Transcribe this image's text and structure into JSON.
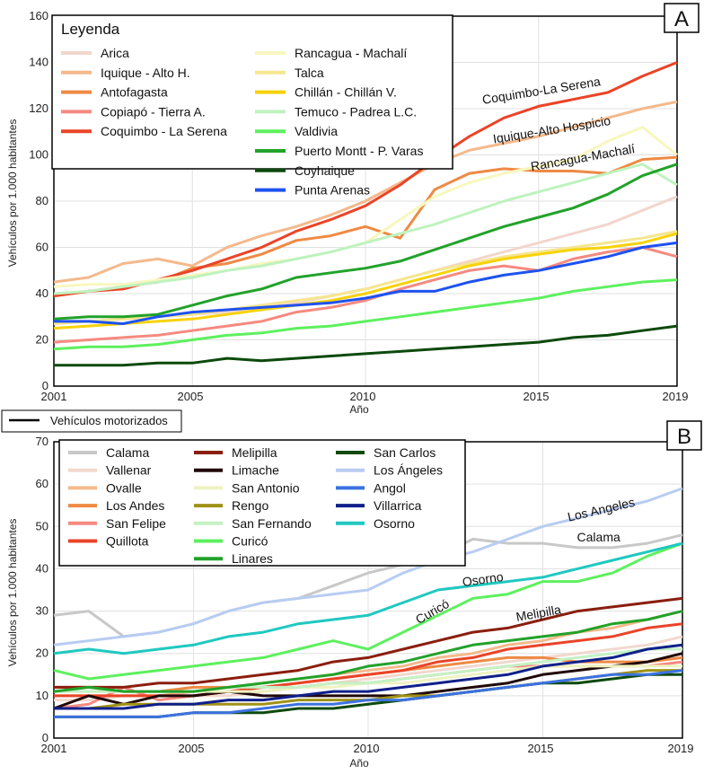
{
  "divider_legend": {
    "label": "Vehículos motorizados",
    "color": "#000000"
  },
  "chart_data": [
    {
      "type": "line",
      "panel": "A",
      "legend_title": "Leyenda",
      "xlabel": "Año",
      "ylabel": "Vehículos por 1.000 habitantes",
      "xlim": [
        2001,
        2019
      ],
      "ylim": [
        0,
        160
      ],
      "xticks": [
        2001,
        2005,
        2010,
        2015,
        2019
      ],
      "yticks": [
        0,
        20,
        40,
        60,
        80,
        100,
        120,
        140,
        160
      ],
      "grid": true,
      "legend_position": "top-left",
      "x": [
        2001,
        2002,
        2003,
        2004,
        2005,
        2006,
        2007,
        2008,
        2009,
        2010,
        2011,
        2012,
        2013,
        2014,
        2015,
        2016,
        2017,
        2018,
        2019
      ],
      "series": [
        {
          "name": "Arica",
          "color": "#f2d6cc",
          "values": [
            27,
            28,
            29,
            30,
            31,
            32,
            34,
            36,
            39,
            42,
            46,
            50,
            54,
            58,
            62,
            66,
            70,
            76,
            82
          ]
        },
        {
          "name": "Iquique - Alto H.",
          "color": "#f4b98c",
          "values": [
            45,
            47,
            53,
            55,
            52,
            60,
            65,
            69,
            74,
            80,
            88,
            96,
            102,
            105,
            108,
            112,
            116,
            120,
            123
          ]
        },
        {
          "name": "Antofagasta",
          "color": "#ee8a44",
          "values": [
            39,
            41,
            43,
            45,
            51,
            53,
            57,
            63,
            65,
            69,
            64,
            85,
            92,
            94,
            93,
            93,
            92,
            98,
            99
          ]
        },
        {
          "name": "Copiapó - Tierra A.",
          "color": "#f58a80",
          "values": [
            19,
            20,
            21,
            22,
            24,
            26,
            28,
            32,
            34,
            37,
            42,
            46,
            50,
            52,
            50,
            55,
            58,
            60,
            56
          ]
        },
        {
          "name": "Coquimbo - La Serena",
          "color": "#ea4428",
          "values": [
            39,
            41,
            42,
            46,
            50,
            55,
            60,
            67,
            72,
            78,
            87,
            98,
            108,
            116,
            121,
            124,
            127,
            134,
            140
          ]
        },
        {
          "name": "Rancagua - Machalí",
          "color": "#f7f7be",
          "values": [
            43,
            44,
            44,
            46,
            48,
            50,
            53,
            55,
            58,
            62,
            72,
            82,
            88,
            92,
            95,
            98,
            106,
            112,
            100
          ]
        },
        {
          "name": "Talca",
          "color": "#f5e690",
          "values": [
            27,
            28,
            29,
            30,
            31,
            33,
            35,
            37,
            39,
            42,
            46,
            50,
            53,
            56,
            58,
            60,
            62,
            64,
            67
          ]
        },
        {
          "name": "Chillán - Chillán V.",
          "color": "#f8d20a",
          "values": [
            25,
            26,
            27,
            28,
            29,
            31,
            33,
            35,
            37,
            40,
            44,
            48,
            52,
            55,
            57,
            59,
            60,
            62,
            66
          ]
        },
        {
          "name": "Temuco - Padrea L.C.",
          "color": "#bff2bf",
          "values": [
            40,
            41,
            43,
            45,
            47,
            50,
            52,
            55,
            58,
            62,
            66,
            70,
            75,
            80,
            84,
            88,
            92,
            96,
            87
          ]
        },
        {
          "name": "Valdivia",
          "color": "#5ef05e",
          "values": [
            16,
            17,
            17,
            18,
            20,
            22,
            23,
            25,
            26,
            28,
            30,
            32,
            34,
            36,
            38,
            41,
            43,
            45,
            46
          ]
        },
        {
          "name": "Puerto Montt - P. Varas",
          "color": "#22a22a",
          "values": [
            29,
            30,
            30,
            31,
            35,
            39,
            42,
            47,
            49,
            51,
            54,
            59,
            64,
            69,
            73,
            77,
            83,
            91,
            96
          ]
        },
        {
          "name": "Coyhaique",
          "color": "#0c4a0c",
          "values": [
            9,
            9,
            9,
            10,
            10,
            12,
            11,
            12,
            13,
            14,
            15,
            16,
            17,
            18,
            19,
            21,
            22,
            24,
            26
          ]
        },
        {
          "name": "Punta Arenas",
          "color": "#1e52f0",
          "values": [
            28,
            28,
            27,
            30,
            32,
            33,
            34,
            35,
            36,
            38,
            41,
            41,
            45,
            48,
            50,
            53,
            56,
            60,
            62
          ]
        }
      ],
      "annotations": [
        {
          "text": "Coquimbo-La Serena",
          "x": 2015.1,
          "y": 126,
          "angle": -9
        },
        {
          "text": "Iquique-Alto Hospicio",
          "x": 2015.4,
          "y": 109,
          "angle": -9
        },
        {
          "text": "Rancagua-Machalí",
          "x": 2016.3,
          "y": 97,
          "angle": -10
        }
      ]
    },
    {
      "type": "line",
      "panel": "B",
      "xlabel": "Año",
      "ylabel": "Vehículos por 1.000 habitantes",
      "xlim": [
        2001,
        2019
      ],
      "ylim": [
        0,
        70
      ],
      "xticks": [
        2001,
        2005,
        2010,
        2015,
        2019
      ],
      "yticks": [
        0,
        10,
        20,
        30,
        40,
        50,
        60,
        70
      ],
      "grid": true,
      "legend_position": "top-left",
      "x": [
        2001,
        2002,
        2003,
        2004,
        2005,
        2006,
        2007,
        2008,
        2009,
        2010,
        2011,
        2012,
        2013,
        2014,
        2015,
        2016,
        2017,
        2018,
        2019
      ],
      "series": [
        {
          "name": "Calama",
          "color": "#c8c8c8",
          "values": [
            29,
            30,
            24,
            25,
            27,
            30,
            32,
            33,
            36,
            39,
            41,
            43,
            47,
            46,
            46,
            45,
            45,
            46,
            48
          ]
        },
        {
          "name": "Vallenar",
          "color": "#f2d8ce",
          "values": [
            9,
            9,
            10,
            10,
            10,
            10,
            11,
            12,
            13,
            14,
            15,
            16,
            17,
            18,
            19,
            20,
            21,
            22,
            24
          ]
        },
        {
          "name": "Ovalle",
          "color": "#f4ba8c",
          "values": [
            10,
            10,
            10,
            10,
            11,
            12,
            13,
            14,
            15,
            16,
            17,
            19,
            20,
            22,
            23,
            25,
            26,
            28,
            30
          ]
        },
        {
          "name": "Los Andes",
          "color": "#ee8a44",
          "values": [
            12,
            12,
            11,
            11,
            12,
            12,
            12,
            13,
            14,
            15,
            16,
            17,
            18,
            19,
            19,
            18,
            18,
            18,
            19
          ]
        },
        {
          "name": "San Felipe",
          "color": "#f58a80",
          "values": [
            7,
            8,
            12,
            9,
            10,
            11,
            11,
            12,
            13,
            13,
            14,
            15,
            16,
            17,
            17,
            17,
            17,
            17,
            18
          ]
        },
        {
          "name": "Quillota",
          "color": "#ea4428",
          "values": [
            10,
            10,
            10,
            10,
            10,
            11,
            12,
            13,
            14,
            15,
            16,
            18,
            19,
            21,
            22,
            23,
            24,
            26,
            27
          ]
        },
        {
          "name": "Melipilla",
          "color": "#8a1e0e",
          "values": [
            12,
            12,
            12,
            13,
            13,
            14,
            15,
            16,
            18,
            19,
            21,
            23,
            25,
            26,
            28,
            30,
            31,
            32,
            33
          ]
        },
        {
          "name": "Limache",
          "color": "#200808",
          "values": [
            7,
            10,
            8,
            10,
            10,
            11,
            10,
            10,
            10,
            10,
            10,
            11,
            12,
            13,
            15,
            16,
            17,
            18,
            20
          ]
        },
        {
          "name": "San Antonio",
          "color": "#eef3c0",
          "values": [
            11,
            11,
            11,
            11,
            11,
            11,
            11,
            12,
            12,
            13,
            13,
            14,
            15,
            16,
            17,
            17,
            17,
            17,
            17
          ]
        },
        {
          "name": "Rengo",
          "color": "#a09216",
          "values": [
            7,
            7,
            8,
            8,
            8,
            8,
            8,
            9,
            9,
            9,
            10,
            10,
            11,
            12,
            13,
            14,
            15,
            16,
            16
          ]
        },
        {
          "name": "San Fernando",
          "color": "#c4f2c4",
          "values": [
            11,
            11,
            11,
            11,
            11,
            12,
            12,
            12,
            13,
            13,
            14,
            15,
            16,
            17,
            18,
            19,
            20,
            21,
            21
          ]
        },
        {
          "name": "Curicó",
          "color": "#5ef05e",
          "values": [
            16,
            14,
            15,
            16,
            17,
            18,
            19,
            21,
            23,
            21,
            25,
            29,
            33,
            34,
            37,
            37,
            39,
            43,
            46
          ]
        },
        {
          "name": "Linares",
          "color": "#22a22a",
          "values": [
            11,
            12,
            11,
            11,
            11,
            12,
            13,
            14,
            15,
            17,
            18,
            20,
            22,
            23,
            24,
            25,
            27,
            28,
            30
          ]
        },
        {
          "name": "San Carlos",
          "color": "#0c4a0c",
          "values": [
            5,
            5,
            5,
            5,
            6,
            6,
            6,
            7,
            7,
            8,
            9,
            10,
            11,
            12,
            13,
            13,
            14,
            15,
            15
          ]
        },
        {
          "name": "Los Ángeles",
          "color": "#b8ccf2",
          "values": [
            22,
            23,
            24,
            25,
            27,
            30,
            32,
            33,
            34,
            35,
            39,
            42,
            44,
            47,
            50,
            52,
            54,
            56,
            59
          ]
        },
        {
          "name": "Angol",
          "color": "#3c72e0",
          "values": [
            5,
            5,
            5,
            5,
            6,
            6,
            7,
            8,
            8,
            9,
            9,
            10,
            11,
            12,
            13,
            14,
            15,
            15,
            16
          ]
        },
        {
          "name": "Villarrica",
          "color": "#10208a",
          "values": [
            7,
            7,
            7,
            8,
            8,
            9,
            9,
            10,
            11,
            11,
            12,
            13,
            14,
            15,
            17,
            18,
            19,
            21,
            22
          ]
        },
        {
          "name": "Osorno",
          "color": "#20c8c0",
          "values": [
            20,
            21,
            20,
            21,
            22,
            24,
            25,
            27,
            28,
            29,
            32,
            35,
            36,
            37,
            38,
            40,
            42,
            44,
            46
          ]
        }
      ],
      "annotations": [
        {
          "text": "Los Angeles",
          "x": 2016.7,
          "y": 53,
          "angle": -13
        },
        {
          "text": "Calama",
          "x": 2016.6,
          "y": 46.5,
          "angle": 0
        },
        {
          "text": "Osorno",
          "x": 2013.3,
          "y": 36.5,
          "angle": -8
        },
        {
          "text": "Curicó",
          "x": 2011.9,
          "y": 29,
          "angle": -30
        },
        {
          "text": "Melipilla",
          "x": 2014.9,
          "y": 28.5,
          "angle": -10
        }
      ]
    }
  ]
}
